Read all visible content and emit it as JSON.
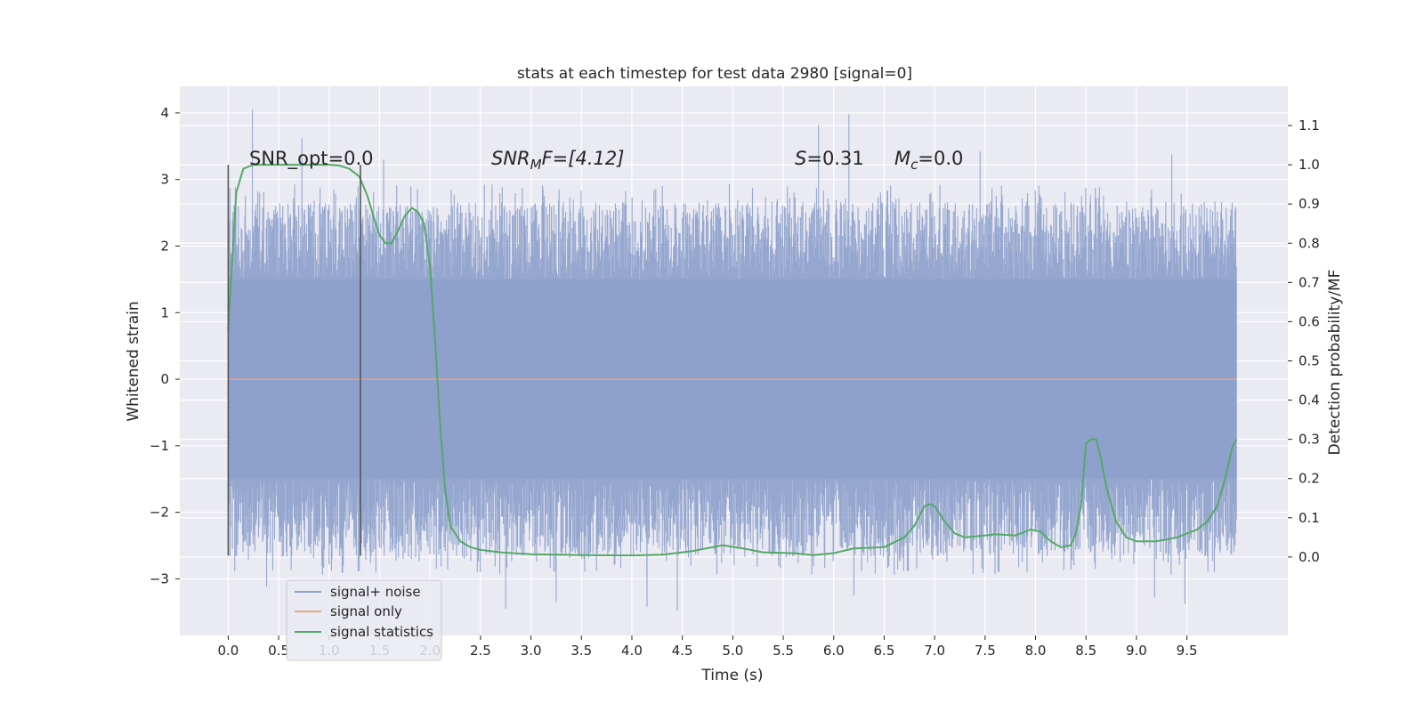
{
  "chart_data": {
    "type": "line",
    "title": "stats at each timestep for test data 2980 [signal=0]",
    "xlabel": "Time (s)",
    "ylabel_left": "Whitened strain",
    "ylabel_right": "Detection probability/MF",
    "xlim": [
      -0.48,
      10.5
    ],
    "ylim_left": [
      -3.85,
      4.4
    ],
    "ylim_right": [
      -0.2,
      1.2
    ],
    "x_ticks": [
      "0.0",
      "0.5",
      "1.0",
      "1.5",
      "2.0",
      "2.5",
      "3.0",
      "3.5",
      "4.0",
      "4.5",
      "5.0",
      "5.5",
      "6.0",
      "6.5",
      "7.0",
      "7.5",
      "8.0",
      "8.5",
      "9.0",
      "9.5"
    ],
    "y_ticks_left": [
      "4",
      "3",
      "2",
      "1",
      "0",
      "−1",
      "−2",
      "−3"
    ],
    "y_ticks_right": [
      "1.1",
      "1.0",
      "0.9",
      "0.8",
      "0.7",
      "0.6",
      "0.5",
      "0.4",
      "0.3",
      "0.2",
      "0.1",
      "0.0"
    ],
    "grid": true,
    "legend_position": "lower-left",
    "vertical_markers": [
      {
        "x": 0.0,
        "ymin": -2.65,
        "ymax": 3.22
      },
      {
        "x": 1.31,
        "ymin": -2.65,
        "ymax": 3.22
      }
    ],
    "annotations": {
      "snr_opt": "SNR_opt=0.0",
      "snr_mf_base": "SNR",
      "snr_mf_sub": "M",
      "snr_mf_tail": "F=[4.12]",
      "s_stat_italic": "S",
      "s_stat_value": "=0.31",
      "mc_italic": "M",
      "mc_sub": "c",
      "mc_value": "=0.0"
    },
    "series": [
      {
        "name": "signal+ noise",
        "color": "#8da0cb",
        "axis": "left",
        "kind": "noise",
        "x_range": [
          0.0,
          9.99
        ],
        "core_band": [
          -1.5,
          1.5
        ],
        "envelope_band": [
          -2.8,
          2.8
        ],
        "extremes": [
          {
            "x": 0.24,
            "y": 4.05
          },
          {
            "x": 0.73,
            "y": 3.62
          },
          {
            "x": 1.54,
            "y": 3.3
          },
          {
            "x": 5.85,
            "y": 3.82
          },
          {
            "x": 6.15,
            "y": 3.98
          },
          {
            "x": 7.45,
            "y": 3.42
          },
          {
            "x": 9.35,
            "y": 3.38
          },
          {
            "x": 0.38,
            "y": -3.12
          },
          {
            "x": 2.75,
            "y": -3.45
          },
          {
            "x": 4.15,
            "y": -3.42
          },
          {
            "x": 4.45,
            "y": -3.48
          },
          {
            "x": 9.18,
            "y": -3.28
          },
          {
            "x": 9.48,
            "y": -3.38
          },
          {
            "x": 3.25,
            "y": -3.35
          },
          {
            "x": 6.2,
            "y": -3.25
          }
        ]
      },
      {
        "name": "signal only",
        "color": "#e5a58a",
        "axis": "left",
        "x": [
          0.0,
          9.99
        ],
        "y": [
          0.0,
          0.0
        ]
      },
      {
        "name": "signal statistics",
        "color": "#55a868",
        "axis": "right",
        "x": [
          0.0,
          0.08,
          0.15,
          0.25,
          0.4,
          0.6,
          0.8,
          1.0,
          1.1,
          1.2,
          1.3,
          1.38,
          1.45,
          1.5,
          1.56,
          1.62,
          1.68,
          1.75,
          1.82,
          1.88,
          1.94,
          2.0,
          2.05,
          2.1,
          2.15,
          2.2,
          2.25,
          2.3,
          2.4,
          2.5,
          2.7,
          3.0,
          3.5,
          4.0,
          4.3,
          4.6,
          4.9,
          5.1,
          5.3,
          5.6,
          5.8,
          6.0,
          6.2,
          6.5,
          6.7,
          6.8,
          6.9,
          6.95,
          7.0,
          7.05,
          7.1,
          7.2,
          7.3,
          7.5,
          7.6,
          7.8,
          7.95,
          8.05,
          8.15,
          8.25,
          8.35,
          8.4,
          8.45,
          8.5,
          8.55,
          8.6,
          8.65,
          8.7,
          8.8,
          8.9,
          9.0,
          9.2,
          9.4,
          9.6,
          9.7,
          9.8,
          9.88,
          9.95,
          9.99
        ],
        "y": [
          0.58,
          0.93,
          0.99,
          1.0,
          1.0,
          1.0,
          1.0,
          1.0,
          0.998,
          0.99,
          0.97,
          0.92,
          0.86,
          0.82,
          0.8,
          0.8,
          0.83,
          0.87,
          0.89,
          0.88,
          0.85,
          0.74,
          0.55,
          0.34,
          0.17,
          0.08,
          0.06,
          0.04,
          0.025,
          0.018,
          0.012,
          0.007,
          0.005,
          0.004,
          0.006,
          0.015,
          0.03,
          0.022,
          0.012,
          0.01,
          0.005,
          0.01,
          0.022,
          0.025,
          0.05,
          0.08,
          0.13,
          0.135,
          0.13,
          0.11,
          0.09,
          0.06,
          0.05,
          0.055,
          0.058,
          0.055,
          0.07,
          0.065,
          0.04,
          0.025,
          0.03,
          0.06,
          0.13,
          0.29,
          0.3,
          0.3,
          0.25,
          0.18,
          0.09,
          0.05,
          0.04,
          0.04,
          0.05,
          0.07,
          0.09,
          0.13,
          0.2,
          0.28,
          0.3
        ]
      }
    ]
  }
}
